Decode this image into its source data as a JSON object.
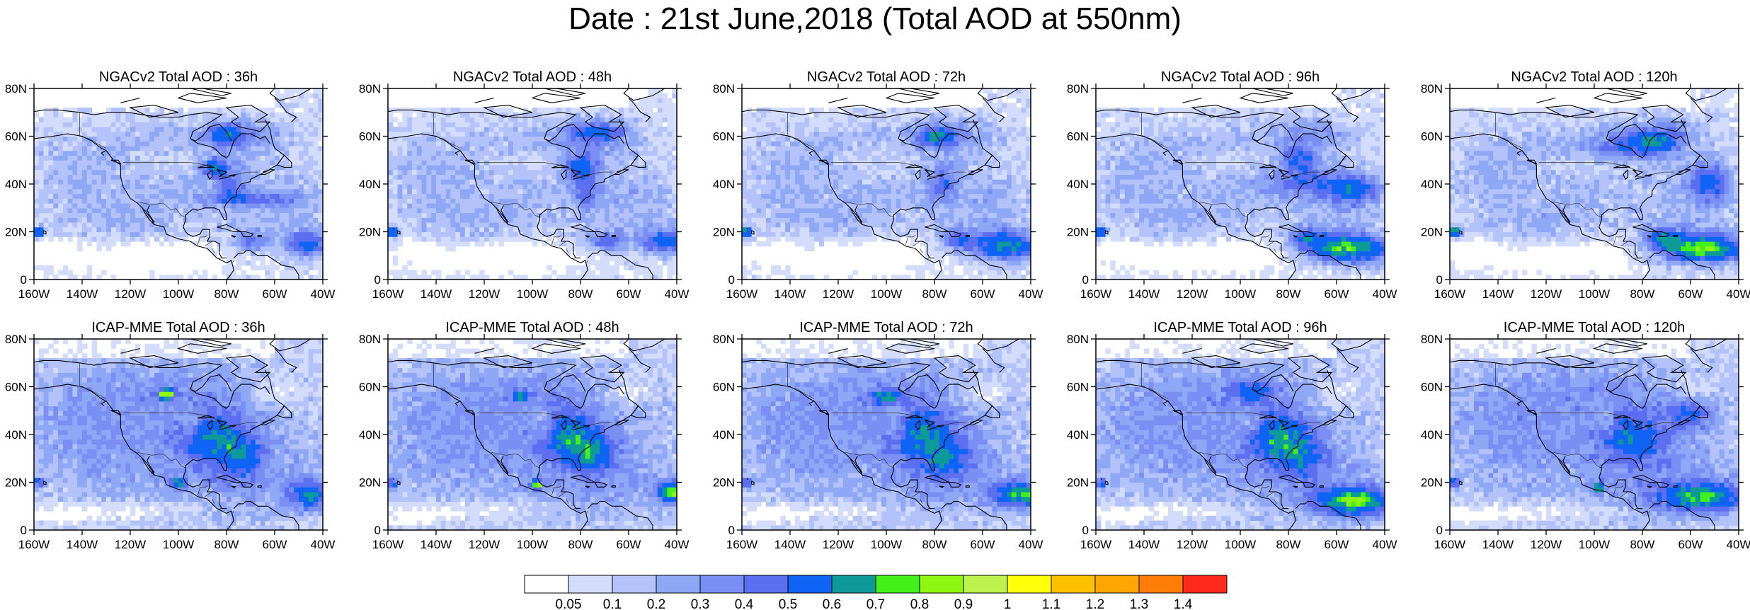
{
  "title": "Date : 21st June,2018 (Total AOD at 550nm)",
  "map": {
    "lon_range": [
      -160,
      -40
    ],
    "lat_range": [
      0,
      80
    ],
    "lon_ticks": [
      "160W",
      "140W",
      "120W",
      "100W",
      "80W",
      "60W",
      "40W"
    ],
    "lat_ticks": [
      "0",
      "20N",
      "40N",
      "60N",
      "80N"
    ],
    "fill_colors": [
      "#ffffff",
      "#d3dcfb",
      "#b3c3f9",
      "#8fa8f6",
      "#7a8ef3",
      "#5b6ff0",
      "#0f64f5"
    ],
    "coast_color": "#000000"
  },
  "panels": [
    {
      "row": 0,
      "col": 0,
      "title": "NGACv2 Total AOD : 36h"
    },
    {
      "row": 0,
      "col": 1,
      "title": "NGACv2 Total AOD : 48h"
    },
    {
      "row": 0,
      "col": 2,
      "title": "NGACv2 Total AOD : 72h"
    },
    {
      "row": 0,
      "col": 3,
      "title": "NGACv2 Total AOD : 96h"
    },
    {
      "row": 0,
      "col": 4,
      "title": "NGACv2 Total AOD : 120h"
    },
    {
      "row": 1,
      "col": 0,
      "title": "ICAP-MME Total AOD : 36h"
    },
    {
      "row": 1,
      "col": 1,
      "title": "ICAP-MME Total AOD : 48h"
    },
    {
      "row": 1,
      "col": 2,
      "title": "ICAP-MME Total AOD : 72h"
    },
    {
      "row": 1,
      "col": 3,
      "title": "ICAP-MME Total AOD : 96h"
    },
    {
      "row": 1,
      "col": 4,
      "title": "ICAP-MME Total AOD : 120h"
    }
  ],
  "colorbar": {
    "colors": [
      "#ffffff",
      "#d3dcfb",
      "#b3c3f9",
      "#8fa8f6",
      "#7a8ef3",
      "#5b6ff0",
      "#0f64f5",
      "#0d9a99",
      "#44f01a",
      "#8ff60f",
      "#bef34f",
      "#ffff0a",
      "#ffc000",
      "#ffa602",
      "#ff7c06",
      "#ff2a1c"
    ],
    "labels": [
      "0.05",
      "0.1",
      "0.2",
      "0.3",
      "0.4",
      "0.5",
      "0.6",
      "0.7",
      "0.8",
      "0.9",
      "1",
      "1.1",
      "1.2",
      "1.3",
      "1.4"
    ]
  }
}
